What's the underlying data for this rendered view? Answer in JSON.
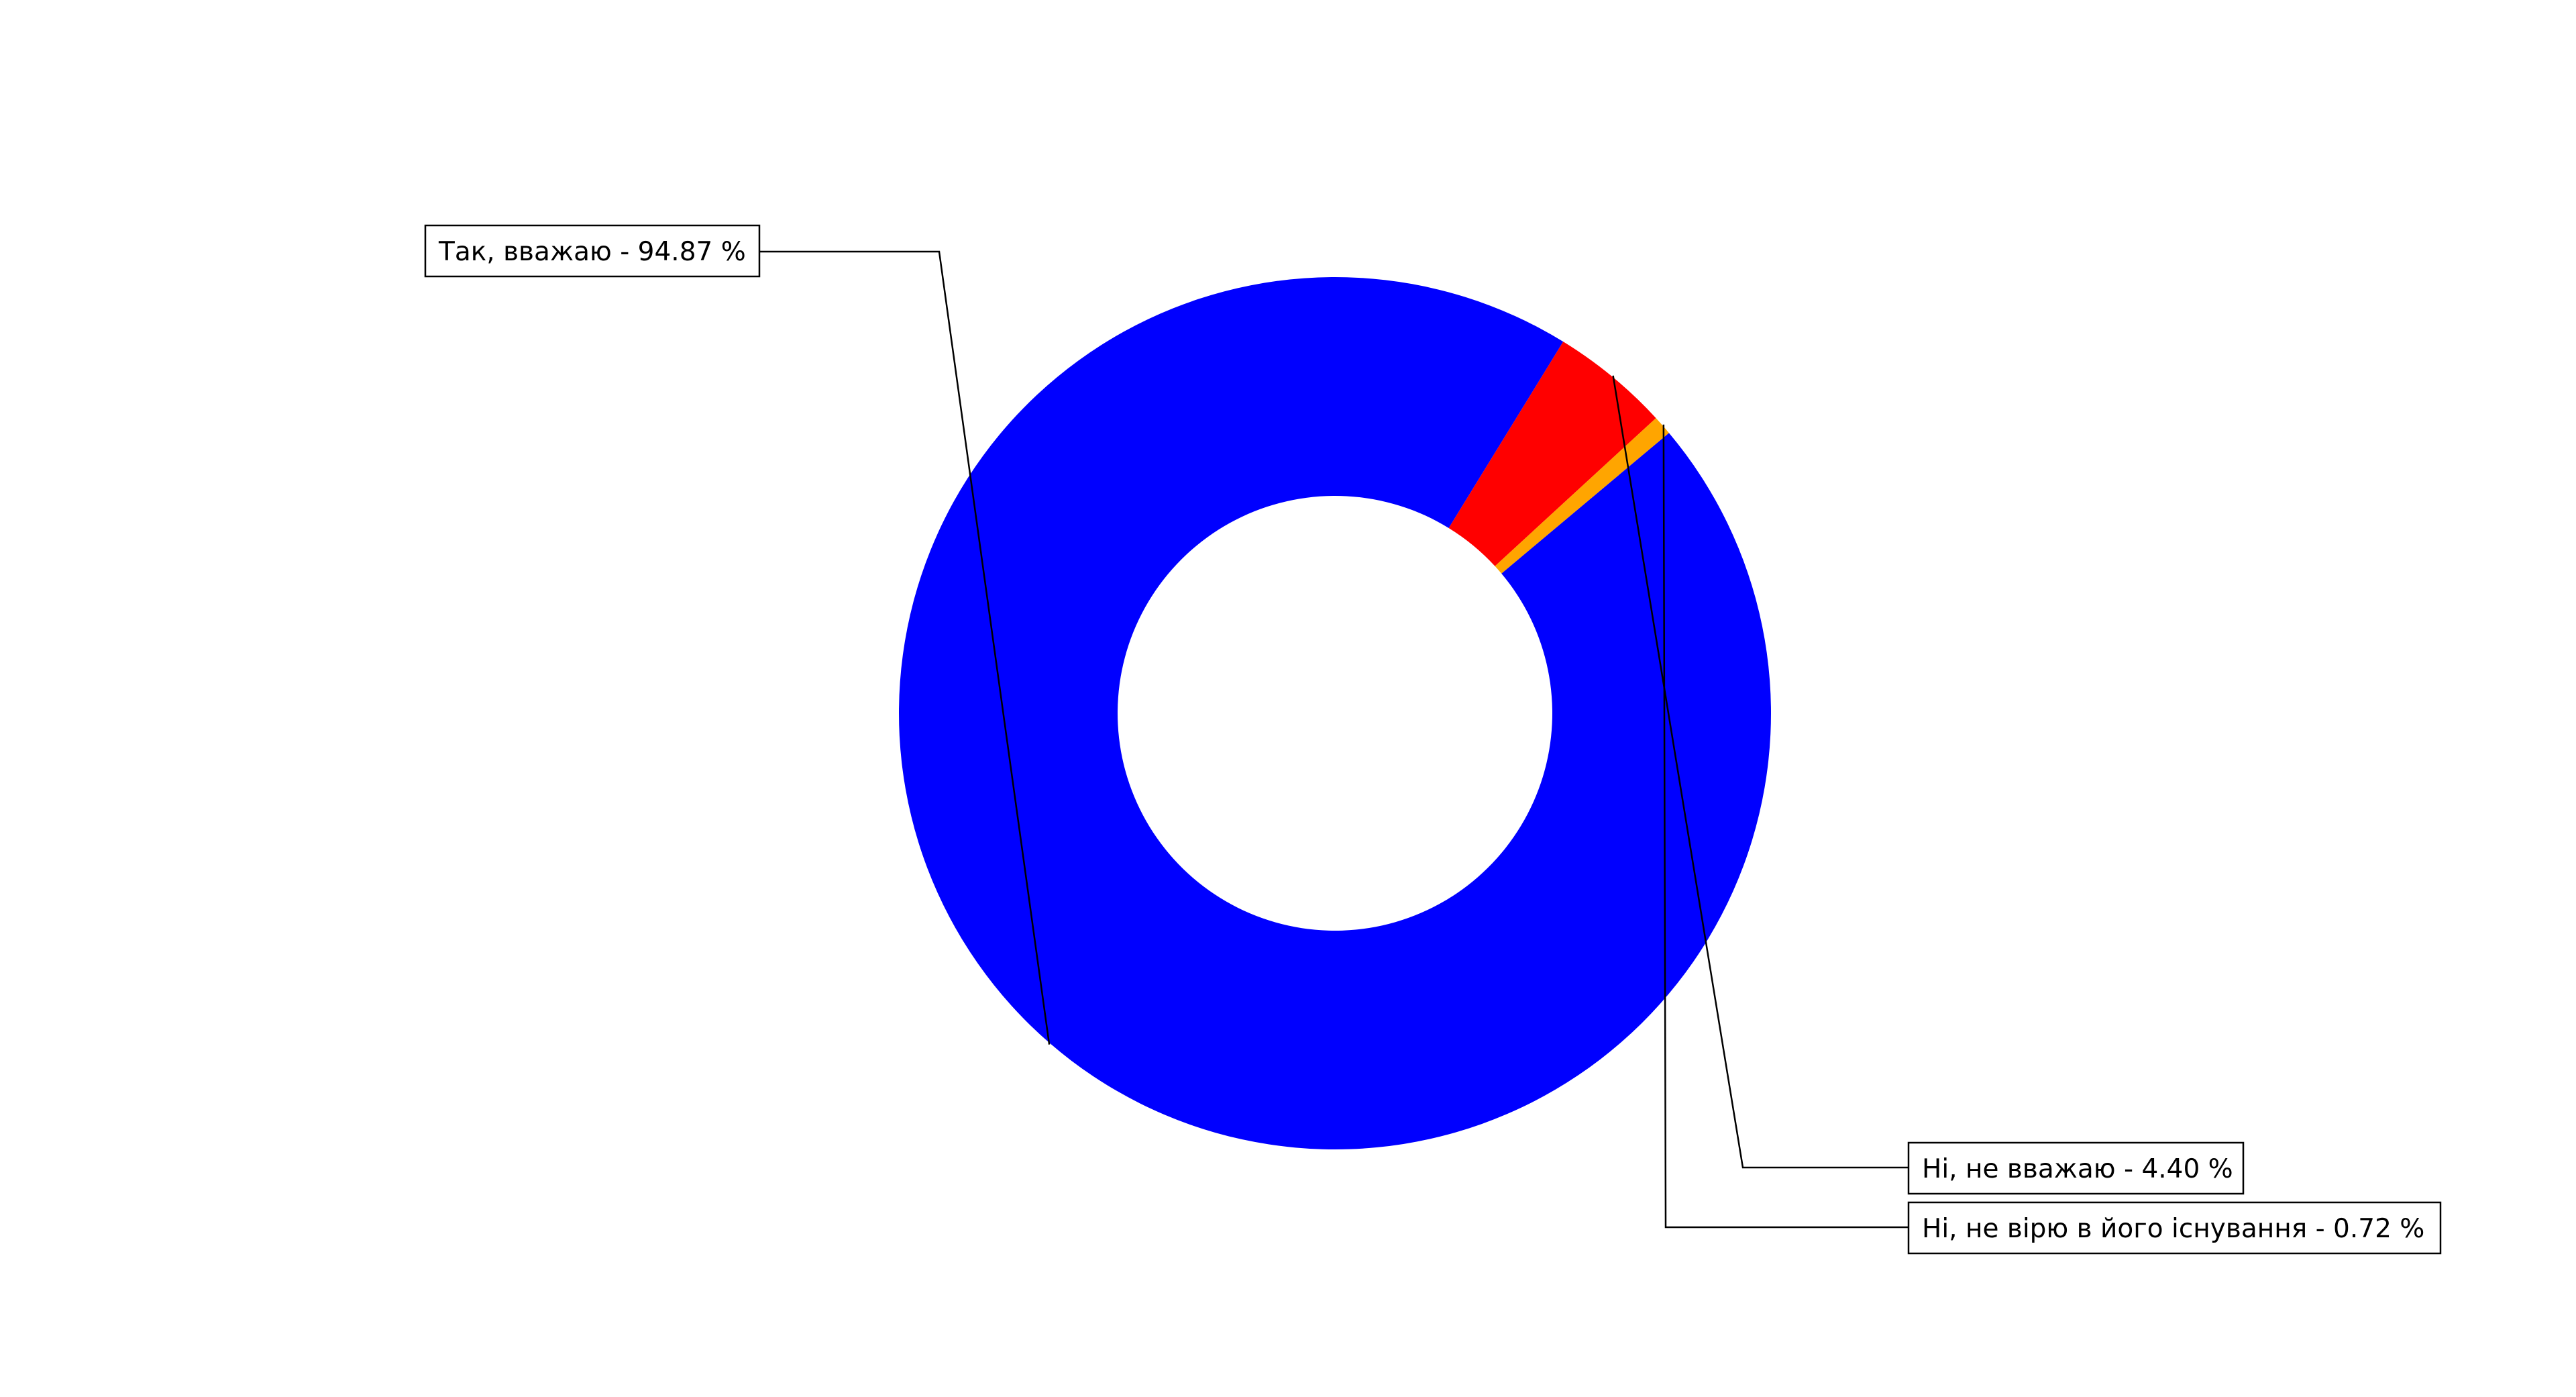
{
  "chart_data": {
    "type": "pie",
    "style": "donut",
    "title": "",
    "slices": [
      {
        "label": "Так, вважаю - 94.87 %",
        "value": 94.87,
        "color": "#0000ff"
      },
      {
        "label": "Ні, не вважаю - 4.40 %",
        "value": 4.4,
        "color": "#ff0000"
      },
      {
        "label": "Ні, не вірю в його існування - 0.72 %",
        "value": 0.72,
        "color": "#ffa500"
      }
    ],
    "start_angle_deg": 40,
    "direction": "clockwise",
    "legend": "none",
    "background": "#ffffff"
  }
}
